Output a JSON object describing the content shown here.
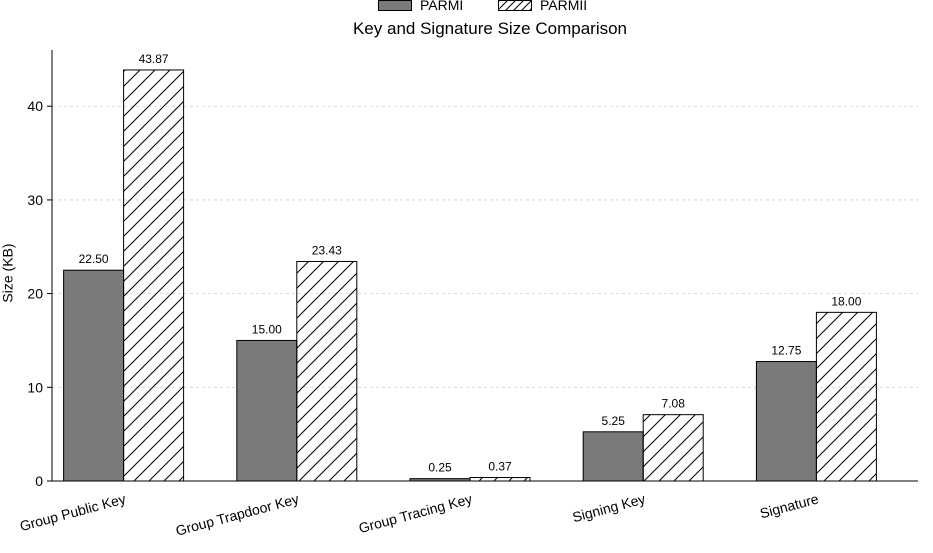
{
  "chart_data": {
    "type": "bar",
    "title": "Key and Signature Size Comparison",
    "xlabel": "",
    "ylabel": "Size (KB)",
    "ylim": [
      0,
      46
    ],
    "yticks": [
      0,
      10,
      20,
      30,
      40
    ],
    "grid": "y-dashed",
    "legend_position": "top-center",
    "categories": [
      "Group Public Key",
      "Group Trapdoor Key",
      "Group Tracing Key",
      "Signing Key",
      "Signature"
    ],
    "series": [
      {
        "name": "PARMI",
        "values": [
          22.5,
          15.0,
          0.25,
          5.25,
          12.75
        ],
        "labels": [
          "22.50",
          "15.00",
          "0.25",
          "5.25",
          "12.75"
        ],
        "fill": "#7a7a7a",
        "pattern": "solid"
      },
      {
        "name": "PARMII",
        "values": [
          43.87,
          23.43,
          0.37,
          7.08,
          18.0
        ],
        "labels": [
          "43.87",
          "23.43",
          "0.37",
          "7.08",
          "18.00"
        ],
        "fill": "#ffffff",
        "pattern": "hatch"
      }
    ]
  }
}
